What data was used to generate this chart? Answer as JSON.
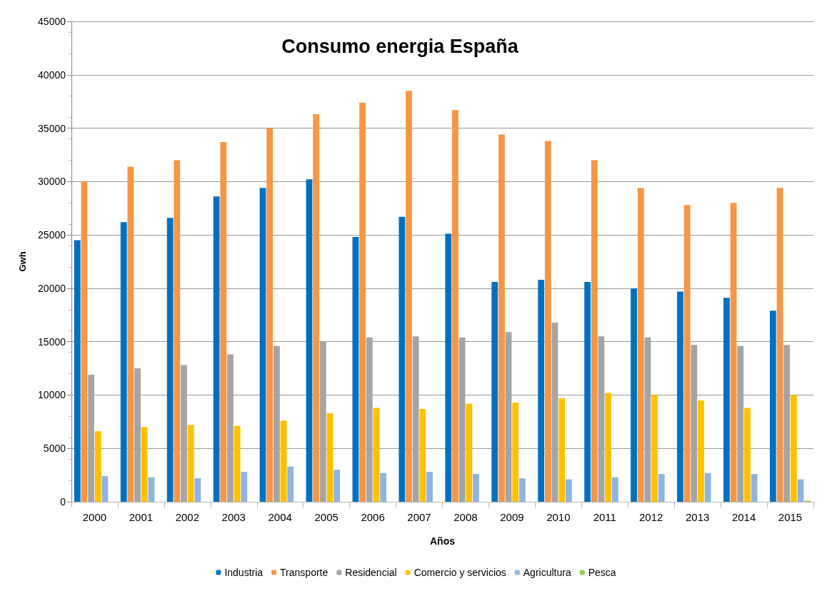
{
  "chart_data": {
    "type": "bar",
    "title": "Consumo energia España",
    "xlabel": "Años",
    "ylabel": "Gwh",
    "categories": [
      "2000",
      "2001",
      "2002",
      "2003",
      "2004",
      "2005",
      "2006",
      "2007",
      "2008",
      "2009",
      "2010",
      "2011",
      "2012",
      "2013",
      "2014",
      "2015"
    ],
    "series": [
      {
        "name": "Industria",
        "color": "#0070c0",
        "values": [
          24500,
          26200,
          26600,
          28600,
          29400,
          30200,
          24800,
          26700,
          25100,
          20600,
          20800,
          20600,
          20000,
          19700,
          19100,
          17900
        ]
      },
      {
        "name": "Transporte",
        "color": "#f79646",
        "values": [
          30000,
          31400,
          32000,
          33700,
          35000,
          36300,
          37400,
          38500,
          36700,
          34400,
          33800,
          32000,
          29400,
          27800,
          28000,
          29400
        ]
      },
      {
        "name": "Residencial",
        "color": "#a5a5a5",
        "values": [
          11900,
          12500,
          12800,
          13800,
          14600,
          15000,
          15400,
          15500,
          15400,
          15900,
          16800,
          15500,
          15400,
          14700,
          14600,
          14700
        ]
      },
      {
        "name": "Comercio y servicios",
        "color": "#ffc000",
        "values": [
          6600,
          7000,
          7200,
          7100,
          7600,
          8300,
          8800,
          8700,
          9200,
          9300,
          9700,
          10200,
          10000,
          9500,
          8800,
          10000
        ]
      },
      {
        "name": "Agricultura",
        "color": "#8eb4e3",
        "values": [
          2400,
          2300,
          2200,
          2800,
          3300,
          3000,
          2700,
          2800,
          2600,
          2200,
          2100,
          2300,
          2600,
          2700,
          2600,
          2100
        ]
      },
      {
        "name": "Pesca",
        "color": "#92d050",
        "values": [
          0,
          0,
          0,
          0,
          0,
          0,
          0,
          0,
          0,
          0,
          0,
          0,
          0,
          0,
          0,
          100
        ]
      }
    ],
    "ylim": [
      0,
      45000
    ],
    "yticks": [
      0,
      5000,
      10000,
      15000,
      20000,
      25000,
      30000,
      35000,
      40000,
      45000
    ],
    "grid": "y",
    "legend": "bottom"
  }
}
